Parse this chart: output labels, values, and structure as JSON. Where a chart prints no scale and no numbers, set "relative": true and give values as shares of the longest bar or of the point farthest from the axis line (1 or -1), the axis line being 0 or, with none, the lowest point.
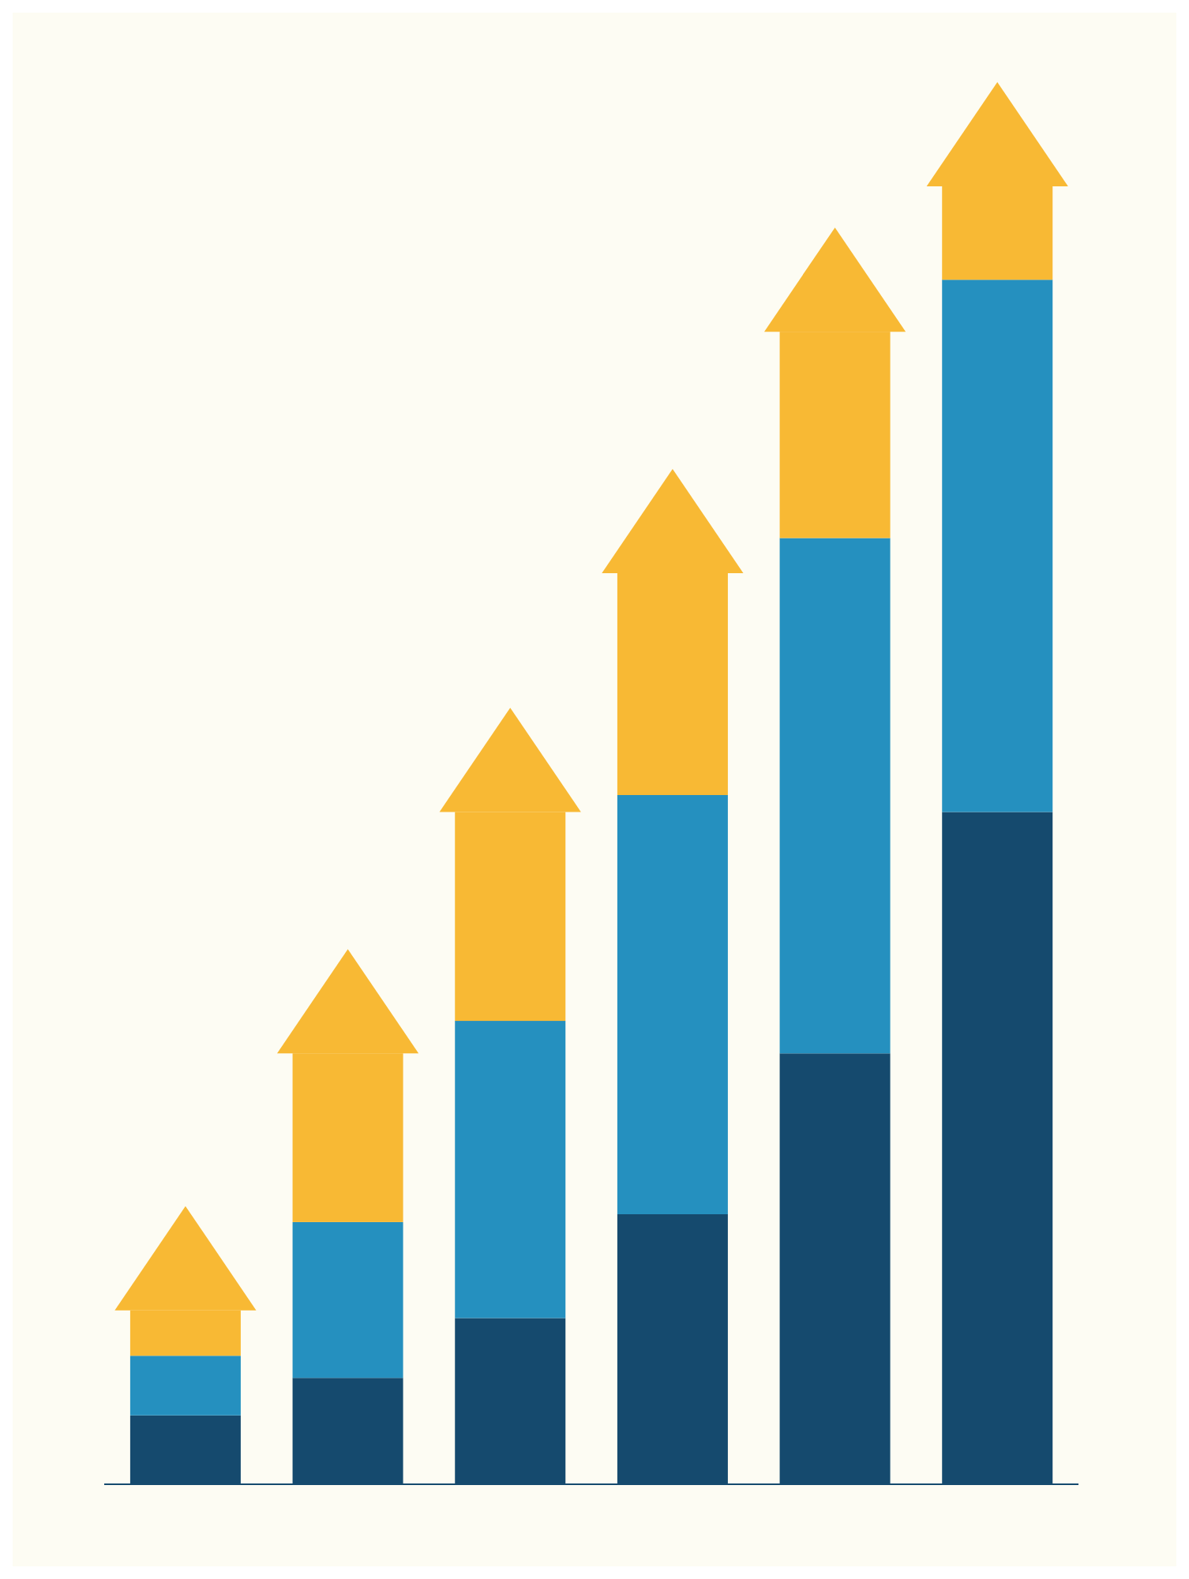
{
  "chart_data": {
    "type": "bar",
    "relative": true,
    "stacked": true,
    "categories": [
      null,
      null,
      null,
      null,
      null,
      null
    ],
    "series": [
      {
        "color": "#154a6e",
        "values": [
          0.053,
          0.082,
          0.128,
          0.208,
          0.332,
          0.518
        ]
      },
      {
        "color": "#2590bf",
        "values": [
          0.046,
          0.12,
          0.229,
          0.323,
          0.397,
          0.41
        ]
      },
      {
        "color": "#f8b934",
        "values": [
          0.035,
          0.13,
          0.161,
          0.171,
          0.159,
          0.072
        ]
      }
    ]
  }
}
